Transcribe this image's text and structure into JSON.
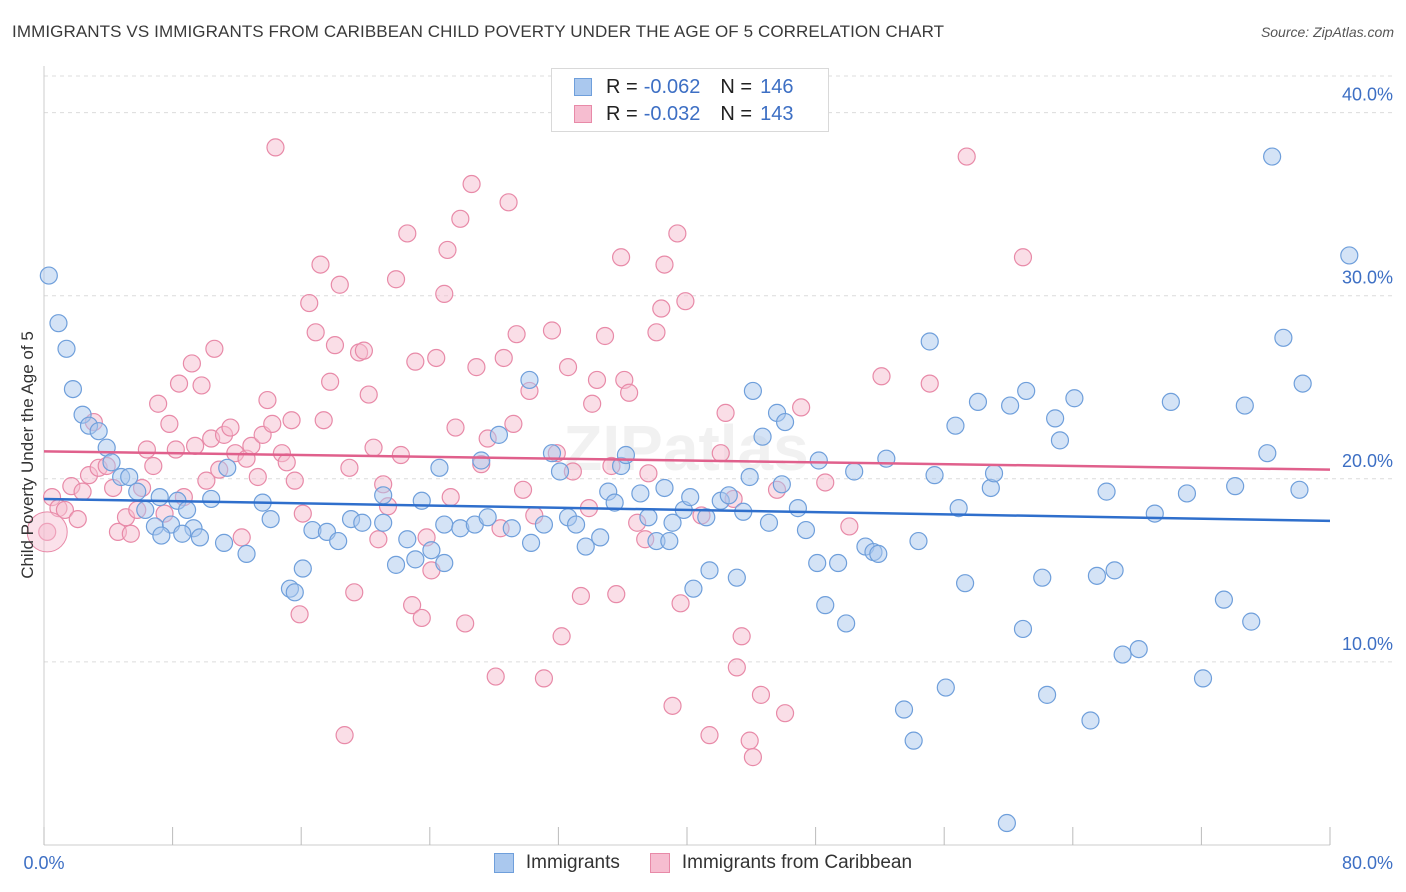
{
  "title": "IMMIGRANTS VS IMMIGRANTS FROM CARIBBEAN CHILD POVERTY UNDER THE AGE OF 5 CORRELATION CHART",
  "source": "Source: ZipAtlas.com",
  "watermark": "ZIPatlas",
  "colors": {
    "blue_fill": "#aac8ee",
    "blue_stroke": "#6f9fdb",
    "blue_line": "#2f6fcc",
    "pink_fill": "#f6bdd0",
    "pink_stroke": "#e88aa8",
    "pink_line": "#e0608c",
    "axis_text": "#3d6fc4",
    "grid": "#dcdcdc"
  },
  "legend_top": {
    "rows": [
      {
        "series": "Immigrants",
        "r_label": "R =",
        "r_value": "-0.062",
        "n_label": "N =",
        "n_value": "146"
      },
      {
        "series": "Immigrants from Caribbean",
        "r_label": "R =",
        "r_value": "-0.032",
        "n_label": "N =",
        "n_value": "143"
      }
    ]
  },
  "legend_bottom": [
    "Immigrants",
    "Immigrants from Caribbean"
  ],
  "chart_data": {
    "type": "scatter",
    "title": "IMMIGRANTS VS IMMIGRANTS FROM CARIBBEAN CHILD POVERTY UNDER THE AGE OF 5 CORRELATION CHART",
    "xlabel": "",
    "ylabel": "Child Poverty Under the Age of 5",
    "xlim": [
      0,
      80
    ],
    "ylim": [
      0,
      42
    ],
    "x_tick_labels": [
      "0.0%",
      "80.0%"
    ],
    "y_ticks": [
      10,
      20,
      30,
      40
    ],
    "y_tick_labels": [
      "10.0%",
      "20.0%",
      "30.0%",
      "40.0%"
    ],
    "grid": true,
    "series": [
      {
        "name": "Immigrants",
        "color": "#6f9fdb",
        "r": -0.062,
        "n": 146,
        "trend": {
          "x": [
            0,
            80
          ],
          "y": [
            18.9,
            17.7
          ]
        },
        "points": [
          [
            0.3,
            31.1
          ],
          [
            0.9,
            28.5
          ],
          [
            1.4,
            27.1
          ],
          [
            1.8,
            24.9
          ],
          [
            2.4,
            23.5
          ],
          [
            2.8,
            22.9
          ],
          [
            3.4,
            22.6
          ],
          [
            3.9,
            21.7
          ],
          [
            4.2,
            20.9
          ],
          [
            4.8,
            20.1
          ],
          [
            5.3,
            20.1
          ],
          [
            5.8,
            19.3
          ],
          [
            6.3,
            18.3
          ],
          [
            7.2,
            19.0
          ],
          [
            6.9,
            17.4
          ],
          [
            7.9,
            17.5
          ],
          [
            8.3,
            18.8
          ],
          [
            8.9,
            18.3
          ],
          [
            9.3,
            17.3
          ],
          [
            8.6,
            17.0
          ],
          [
            9.7,
            16.8
          ],
          [
            7.3,
            16.9
          ],
          [
            11.2,
            16.5
          ],
          [
            10.4,
            18.9
          ],
          [
            11.4,
            20.6
          ],
          [
            12.6,
            15.9
          ],
          [
            13.6,
            18.7
          ],
          [
            14.1,
            17.8
          ],
          [
            15.3,
            14.0
          ],
          [
            15.6,
            13.8
          ],
          [
            16.1,
            15.1
          ],
          [
            16.7,
            17.2
          ],
          [
            17.6,
            17.1
          ],
          [
            18.3,
            16.6
          ],
          [
            19.1,
            17.8
          ],
          [
            19.8,
            17.6
          ],
          [
            21.1,
            19.1
          ],
          [
            21.1,
            17.6
          ],
          [
            21.9,
            15.3
          ],
          [
            22.6,
            16.7
          ],
          [
            23.1,
            15.6
          ],
          [
            23.5,
            18.8
          ],
          [
            24.1,
            16.1
          ],
          [
            24.6,
            20.6
          ],
          [
            24.9,
            17.5
          ],
          [
            24.9,
            15.4
          ],
          [
            25.9,
            17.3
          ],
          [
            26.8,
            17.5
          ],
          [
            27.2,
            21.0
          ],
          [
            27.6,
            17.9
          ],
          [
            28.3,
            22.4
          ],
          [
            29.1,
            17.3
          ],
          [
            30.2,
            25.4
          ],
          [
            30.3,
            16.5
          ],
          [
            31.1,
            17.5
          ],
          [
            31.6,
            21.4
          ],
          [
            32.1,
            20.4
          ],
          [
            32.6,
            17.9
          ],
          [
            33.1,
            17.5
          ],
          [
            33.7,
            16.3
          ],
          [
            34.6,
            16.8
          ],
          [
            35.1,
            19.3
          ],
          [
            35.5,
            18.7
          ],
          [
            35.9,
            20.7
          ],
          [
            36.2,
            21.3
          ],
          [
            37.1,
            19.2
          ],
          [
            37.6,
            17.9
          ],
          [
            38.1,
            16.6
          ],
          [
            38.6,
            19.5
          ],
          [
            38.9,
            16.6
          ],
          [
            39.1,
            17.6
          ],
          [
            39.8,
            18.3
          ],
          [
            40.2,
            19.0
          ],
          [
            40.4,
            14.0
          ],
          [
            41.2,
            17.9
          ],
          [
            41.4,
            15.0
          ],
          [
            42.1,
            18.8
          ],
          [
            42.6,
            19.1
          ],
          [
            43.1,
            14.6
          ],
          [
            43.5,
            18.2
          ],
          [
            43.9,
            20.1
          ],
          [
            44.1,
            24.8
          ],
          [
            44.7,
            22.3
          ],
          [
            45.1,
            17.6
          ],
          [
            45.6,
            23.6
          ],
          [
            45.9,
            19.7
          ],
          [
            46.1,
            23.1
          ],
          [
            46.9,
            18.4
          ],
          [
            47.4,
            17.2
          ],
          [
            48.1,
            15.4
          ],
          [
            48.2,
            21.0
          ],
          [
            48.6,
            13.1
          ],
          [
            49.4,
            15.4
          ],
          [
            49.9,
            12.1
          ],
          [
            50.4,
            20.4
          ],
          [
            51.1,
            16.3
          ],
          [
            51.6,
            16.0
          ],
          [
            51.9,
            15.9
          ],
          [
            52.4,
            21.1
          ],
          [
            53.5,
            7.4
          ],
          [
            54.1,
            5.7
          ],
          [
            54.4,
            16.6
          ],
          [
            55.1,
            27.5
          ],
          [
            55.4,
            20.2
          ],
          [
            56.1,
            8.6
          ],
          [
            56.7,
            22.9
          ],
          [
            56.9,
            18.4
          ],
          [
            57.3,
            14.3
          ],
          [
            58.1,
            24.2
          ],
          [
            58.9,
            19.5
          ],
          [
            59.1,
            20.3
          ],
          [
            59.9,
            1.2
          ],
          [
            60.1,
            24.0
          ],
          [
            60.9,
            11.8
          ],
          [
            61.1,
            24.8
          ],
          [
            62.1,
            14.6
          ],
          [
            62.4,
            8.2
          ],
          [
            62.9,
            23.3
          ],
          [
            63.2,
            22.1
          ],
          [
            64.1,
            24.4
          ],
          [
            65.1,
            6.8
          ],
          [
            65.5,
            14.7
          ],
          [
            66.1,
            19.3
          ],
          [
            66.6,
            15.0
          ],
          [
            67.1,
            10.4
          ],
          [
            68.1,
            10.7
          ],
          [
            69.1,
            18.1
          ],
          [
            70.1,
            24.2
          ],
          [
            71.1,
            19.2
          ],
          [
            72.1,
            9.1
          ],
          [
            73.4,
            13.4
          ],
          [
            74.1,
            19.6
          ],
          [
            74.7,
            24.0
          ],
          [
            75.1,
            12.2
          ],
          [
            76.1,
            21.4
          ],
          [
            76.4,
            37.6
          ],
          [
            77.1,
            27.7
          ],
          [
            78.1,
            19.4
          ],
          [
            78.3,
            25.2
          ],
          [
            81.2,
            32.2
          ]
        ]
      },
      {
        "name": "Immigrants from Caribbean",
        "color": "#e88aa8",
        "r": -0.032,
        "n": 143,
        "trend": {
          "x": [
            0,
            80
          ],
          "y": [
            21.5,
            20.5
          ]
        },
        "points": [
          [
            0.2,
            17.1
          ],
          [
            0.5,
            19.0
          ],
          [
            0.9,
            18.4
          ],
          [
            1.3,
            18.3
          ],
          [
            1.7,
            19.6
          ],
          [
            2.1,
            17.8
          ],
          [
            2.4,
            19.3
          ],
          [
            2.8,
            20.2
          ],
          [
            3.1,
            23.1
          ],
          [
            3.4,
            20.6
          ],
          [
            3.9,
            20.7
          ],
          [
            4.3,
            19.5
          ],
          [
            4.6,
            17.1
          ],
          [
            5.1,
            17.9
          ],
          [
            5.4,
            17.0
          ],
          [
            5.8,
            18.3
          ],
          [
            6.1,
            19.5
          ],
          [
            6.4,
            21.6
          ],
          [
            6.8,
            20.7
          ],
          [
            7.1,
            24.1
          ],
          [
            7.5,
            18.1
          ],
          [
            7.8,
            23.0
          ],
          [
            8.2,
            21.6
          ],
          [
            8.4,
            25.2
          ],
          [
            8.7,
            19.0
          ],
          [
            9.2,
            26.3
          ],
          [
            9.4,
            21.8
          ],
          [
            9.8,
            25.1
          ],
          [
            10.1,
            19.9
          ],
          [
            10.4,
            22.2
          ],
          [
            10.6,
            27.1
          ],
          [
            10.9,
            20.5
          ],
          [
            11.2,
            22.4
          ],
          [
            11.6,
            22.8
          ],
          [
            11.9,
            21.4
          ],
          [
            12.3,
            16.8
          ],
          [
            12.6,
            21.1
          ],
          [
            12.9,
            21.8
          ],
          [
            13.3,
            20.1
          ],
          [
            13.6,
            22.4
          ],
          [
            13.9,
            24.3
          ],
          [
            14.2,
            23.0
          ],
          [
            14.4,
            38.1
          ],
          [
            14.8,
            21.4
          ],
          [
            15.1,
            20.9
          ],
          [
            15.4,
            23.2
          ],
          [
            15.6,
            19.9
          ],
          [
            15.9,
            12.6
          ],
          [
            16.1,
            18.1
          ],
          [
            16.5,
            29.6
          ],
          [
            16.9,
            28.0
          ],
          [
            17.2,
            31.7
          ],
          [
            17.4,
            23.2
          ],
          [
            17.8,
            25.3
          ],
          [
            18.1,
            27.3
          ],
          [
            18.4,
            30.6
          ],
          [
            18.7,
            6.0
          ],
          [
            19.0,
            20.6
          ],
          [
            19.3,
            13.8
          ],
          [
            19.6,
            26.9
          ],
          [
            19.9,
            27.0
          ],
          [
            20.2,
            24.6
          ],
          [
            20.5,
            21.7
          ],
          [
            20.8,
            16.7
          ],
          [
            21.1,
            19.7
          ],
          [
            21.4,
            18.5
          ],
          [
            21.9,
            30.9
          ],
          [
            22.2,
            21.3
          ],
          [
            22.6,
            33.4
          ],
          [
            22.9,
            13.1
          ],
          [
            23.1,
            26.4
          ],
          [
            23.5,
            12.4
          ],
          [
            23.8,
            16.8
          ],
          [
            24.1,
            15.0
          ],
          [
            24.4,
            26.6
          ],
          [
            24.9,
            30.1
          ],
          [
            25.1,
            32.5
          ],
          [
            25.3,
            19.0
          ],
          [
            25.6,
            22.8
          ],
          [
            25.9,
            34.2
          ],
          [
            26.2,
            12.1
          ],
          [
            26.6,
            36.1
          ],
          [
            26.9,
            26.1
          ],
          [
            27.2,
            20.8
          ],
          [
            27.6,
            22.2
          ],
          [
            28.1,
            9.2
          ],
          [
            28.4,
            17.3
          ],
          [
            28.6,
            26.6
          ],
          [
            28.9,
            35.1
          ],
          [
            29.2,
            23.0
          ],
          [
            29.4,
            27.9
          ],
          [
            29.8,
            19.4
          ],
          [
            30.2,
            24.8
          ],
          [
            30.5,
            18.0
          ],
          [
            31.1,
            9.1
          ],
          [
            31.6,
            28.1
          ],
          [
            31.9,
            21.4
          ],
          [
            32.2,
            11.4
          ],
          [
            32.6,
            26.1
          ],
          [
            32.9,
            20.4
          ],
          [
            33.4,
            13.6
          ],
          [
            33.9,
            18.4
          ],
          [
            34.1,
            24.1
          ],
          [
            34.4,
            25.4
          ],
          [
            34.9,
            27.8
          ],
          [
            35.3,
            20.7
          ],
          [
            35.6,
            13.7
          ],
          [
            35.9,
            32.1
          ],
          [
            36.1,
            25.4
          ],
          [
            36.4,
            24.7
          ],
          [
            36.9,
            17.6
          ],
          [
            37.4,
            16.7
          ],
          [
            37.6,
            20.3
          ],
          [
            38.1,
            28.0
          ],
          [
            38.4,
            29.3
          ],
          [
            38.6,
            31.7
          ],
          [
            39.1,
            7.6
          ],
          [
            39.4,
            33.4
          ],
          [
            39.6,
            13.2
          ],
          [
            39.9,
            29.7
          ],
          [
            40.9,
            18.0
          ],
          [
            41.4,
            6.0
          ],
          [
            42.1,
            21.4
          ],
          [
            42.4,
            23.6
          ],
          [
            42.9,
            18.9
          ],
          [
            43.1,
            9.7
          ],
          [
            43.4,
            11.4
          ],
          [
            43.9,
            5.7
          ],
          [
            44.1,
            4.8
          ],
          [
            44.6,
            8.2
          ],
          [
            45.6,
            19.4
          ],
          [
            46.1,
            7.2
          ],
          [
            47.1,
            23.9
          ],
          [
            48.6,
            19.8
          ],
          [
            50.1,
            17.4
          ],
          [
            52.1,
            25.6
          ],
          [
            55.1,
            25.2
          ],
          [
            57.4,
            37.6
          ],
          [
            60.9,
            32.1
          ]
        ]
      }
    ]
  }
}
